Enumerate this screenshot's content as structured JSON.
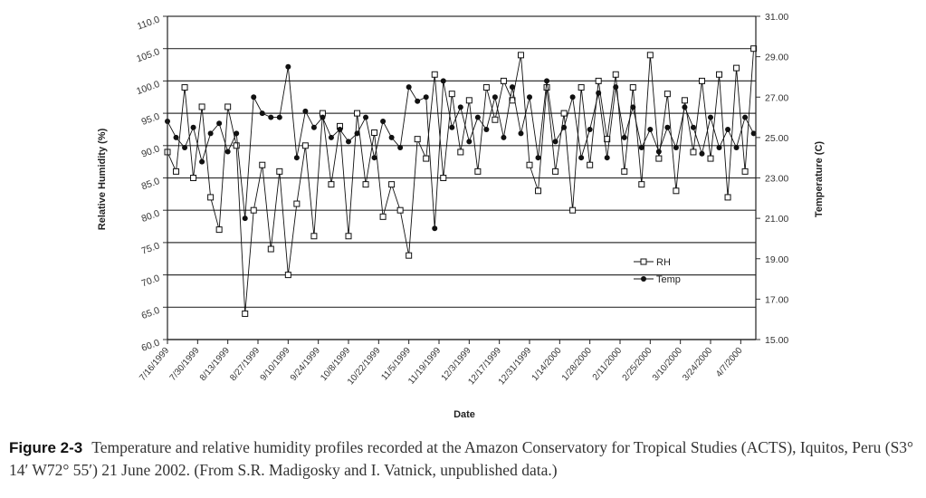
{
  "chart_data": {
    "type": "line",
    "xlabel": "Date",
    "ylabel": "Relative Humidity (%)",
    "y2label": "Temperature (C)",
    "ylim": [
      60,
      110
    ],
    "y2lim": [
      15,
      31
    ],
    "yticks": [
      "60.0",
      "65.0",
      "70.0",
      "75.0",
      "80.0",
      "85.0",
      "90.0",
      "95.0",
      "100.0",
      "105.0",
      "110.0"
    ],
    "y2ticks": [
      "15.00",
      "17.00",
      "19.00",
      "21.00",
      "23.00",
      "25.00",
      "27.00",
      "29.00",
      "31.00"
    ],
    "xticks": [
      "7/16/1999",
      "7/30/1999",
      "8/13/1999",
      "8/27/1999",
      "9/10/1999",
      "9/24/1999",
      "10/8/1999",
      "10/22/1999",
      "11/5/1999",
      "11/19/1999",
      "12/3/1999",
      "12/17/1999",
      "12/31/1999",
      "1/14/2000",
      "1/28/2000",
      "2/11/2000",
      "2/25/2000",
      "3/10/2000",
      "3/24/2000",
      "4/7/2000"
    ],
    "xlim": [
      "7/16/1999",
      "4/14/2000"
    ],
    "grid": "horizontal",
    "legend_placement": "center-right",
    "x": [
      "7/16/1999",
      "7/20/1999",
      "7/24/1999",
      "7/28/1999",
      "8/1/1999",
      "8/5/1999",
      "8/9/1999",
      "8/13/1999",
      "8/17/1999",
      "8/21/1999",
      "8/25/1999",
      "8/29/1999",
      "9/2/1999",
      "9/6/1999",
      "9/10/1999",
      "9/14/1999",
      "9/18/1999",
      "9/22/1999",
      "9/26/1999",
      "9/30/1999",
      "10/4/1999",
      "10/8/1999",
      "10/12/1999",
      "10/16/1999",
      "10/20/1999",
      "10/24/1999",
      "10/28/1999",
      "11/1/1999",
      "11/5/1999",
      "11/9/1999",
      "11/13/1999",
      "11/17/1999",
      "11/21/1999",
      "11/25/1999",
      "11/29/1999",
      "12/3/1999",
      "12/7/1999",
      "12/11/1999",
      "12/15/1999",
      "12/19/1999",
      "12/23/1999",
      "12/27/1999",
      "12/31/1999",
      "1/4/2000",
      "1/8/2000",
      "1/12/2000",
      "1/16/2000",
      "1/20/2000",
      "1/24/2000",
      "1/28/2000",
      "2/1/2000",
      "2/5/2000",
      "2/9/2000",
      "2/13/2000",
      "2/17/2000",
      "2/21/2000",
      "2/25/2000",
      "2/29/2000",
      "3/4/2000",
      "3/8/2000",
      "3/12/2000",
      "3/16/2000",
      "3/20/2000",
      "3/24/2000",
      "3/28/2000",
      "4/1/2000",
      "4/5/2000",
      "4/9/2000",
      "4/13/2000"
    ],
    "series": [
      {
        "name": "RH",
        "axis": "left",
        "marker": "open-square",
        "values": [
          89,
          86,
          99,
          85,
          96,
          82,
          77,
          96,
          90,
          64,
          80,
          87,
          74,
          86,
          70,
          81,
          90,
          76,
          95,
          84,
          93,
          76,
          95,
          84,
          92,
          79,
          84,
          80,
          73,
          91,
          88,
          101,
          85,
          98,
          89,
          97,
          86,
          99,
          94,
          100,
          97,
          104,
          87,
          83,
          99,
          86,
          95,
          80,
          99,
          87,
          100,
          91,
          101,
          86,
          99,
          84,
          104,
          88,
          98,
          83,
          97,
          89,
          100,
          88,
          101,
          82,
          102,
          86,
          105
        ]
      },
      {
        "name": "Temp",
        "axis": "right",
        "marker": "filled-circle",
        "values": [
          25.8,
          25.0,
          24.5,
          25.5,
          23.8,
          25.2,
          25.7,
          24.3,
          25.2,
          21.0,
          27.0,
          26.2,
          26.0,
          26.0,
          28.5,
          24.0,
          26.3,
          25.5,
          26.0,
          25.0,
          25.4,
          24.8,
          25.2,
          26.0,
          24.0,
          25.8,
          25.0,
          24.5,
          27.5,
          26.8,
          27.0,
          20.5,
          27.8,
          25.5,
          26.5,
          24.8,
          26.0,
          25.4,
          27.0,
          25.0,
          27.5,
          25.2,
          27.0,
          24.0,
          27.8,
          24.8,
          25.5,
          27.0,
          24.0,
          25.4,
          27.2,
          24.0,
          27.5,
          25.0,
          26.5,
          24.5,
          25.4,
          24.3,
          25.5,
          24.5,
          26.5,
          25.5,
          24.2,
          26.0,
          24.5,
          25.4,
          24.5,
          26.0,
          25.2
        ]
      }
    ]
  },
  "caption": {
    "figure_label": "Figure 2-3",
    "text": "Temperature and relative humidity profiles recorded at the Amazon Conservatory for Tropical Studies (ACTS), Iquitos, Peru (S3° 14′ W72° 55′) 21 June 2002. (From S.R. Madigosky and I. Vatnick, unpublished data.)"
  },
  "colors": {
    "series": "#111111",
    "grid": "#333333",
    "marker_fill_rh": "#ffffff",
    "marker_fill_temp": "#111111"
  }
}
